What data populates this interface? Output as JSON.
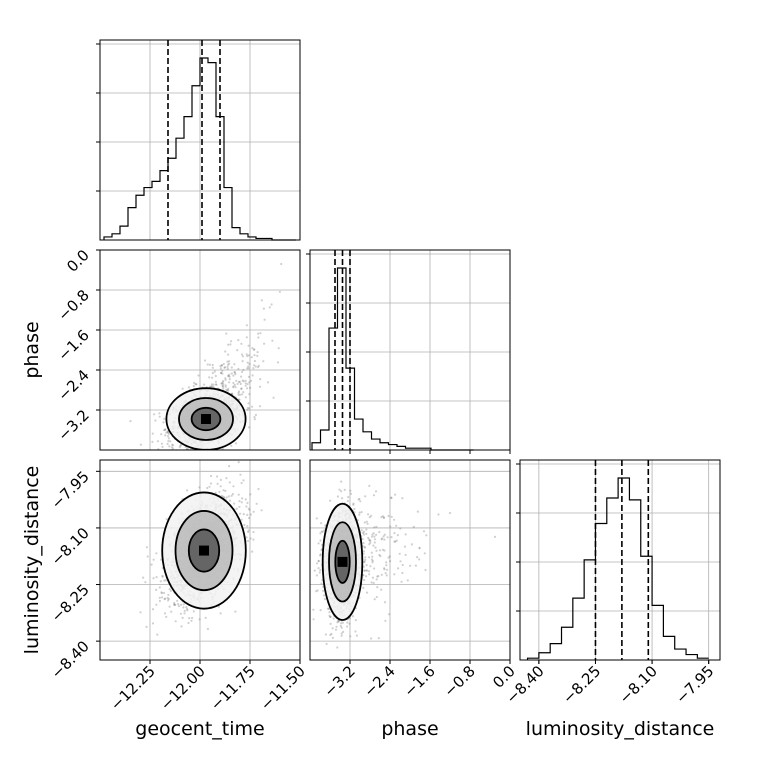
{
  "chart_data": {
    "type": "corner",
    "parameters": [
      "geocent_time",
      "phase",
      "luminosity_distance"
    ],
    "ranges": {
      "geocent_time": [
        -12.5,
        -11.5
      ],
      "phase": [
        -4.0,
        0.0
      ],
      "luminosity_distance": [
        -8.45,
        -7.92
      ]
    },
    "ticks": {
      "geocent_time": [
        "-12.25",
        "-12.00",
        "-11.75",
        "-11.50"
      ],
      "phase_y": [
        "0.0",
        "-0.8",
        "-1.6",
        "-2.4",
        "-3.2"
      ],
      "phase_x": [
        "-3.2",
        "-2.4",
        "-1.6",
        "-0.8",
        "0.0"
      ],
      "luminosity_distance_y": [
        "-7.95",
        "-8.10",
        "-8.25",
        "-8.40"
      ],
      "luminosity_distance_x": [
        "-8.40",
        "-8.25",
        "-8.10",
        "-7.95"
      ]
    },
    "tick_values": {
      "geocent_time": [
        -12.25,
        -12.0,
        -11.75,
        -11.5
      ],
      "phase": [
        0.0,
        -0.8,
        -1.6,
        -2.4,
        -3.2
      ],
      "luminosity_distance": [
        -7.95,
        -8.1,
        -8.25,
        -8.4
      ]
    },
    "quantiles": {
      "geocent_time": [
        -12.16,
        -11.99,
        -11.9
      ],
      "phase": [
        -3.5,
        -3.35,
        -3.2
      ],
      "luminosity_distance": [
        -8.25,
        -8.18,
        -8.11
      ]
    },
    "histograms": {
      "geocent_time": {
        "edges": [
          -12.48,
          -12.44,
          -12.4,
          -12.36,
          -12.32,
          -12.28,
          -12.24,
          -12.2,
          -12.16,
          -12.12,
          -12.08,
          -12.04,
          -12.0,
          -11.96,
          -11.92,
          -11.88,
          -11.84,
          -11.8,
          -11.76,
          -11.72,
          -11.68,
          -11.64,
          -11.6,
          -11.56,
          -11.52
        ],
        "counts": [
          2,
          4,
          9,
          21,
          29,
          34,
          38,
          45,
          53,
          66,
          80,
          100,
          118,
          115,
          80,
          34,
          8,
          4,
          2,
          1,
          1,
          0,
          0,
          0
        ]
      },
      "phase": {
        "edges": [
          -3.96,
          -3.79,
          -3.62,
          -3.45,
          -3.28,
          -3.11,
          -2.94,
          -2.77,
          -2.6,
          -2.43,
          -2.26,
          -2.09,
          -1.92,
          -1.75,
          -1.58,
          -1.41,
          -1.24,
          -1.07,
          -0.9,
          -0.73
        ],
        "counts": [
          4,
          11,
          67,
          100,
          45,
          17,
          10,
          6,
          4,
          3,
          2,
          1,
          1,
          1,
          0,
          0,
          0,
          0,
          0
        ]
      },
      "luminosity_distance": {
        "edges": [
          -8.43,
          -8.4,
          -8.37,
          -8.34,
          -8.31,
          -8.28,
          -8.25,
          -8.22,
          -8.19,
          -8.16,
          -8.13,
          -8.1,
          -8.07,
          -8.04,
          -8.01,
          -7.98,
          -7.95
        ],
        "counts": [
          1,
          4,
          9,
          18,
          34,
          55,
          75,
          89,
          100,
          88,
          57,
          30,
          13,
          6,
          3,
          1
        ]
      }
    },
    "density_centers": {
      "geocent_time|phase": [
        -11.97,
        -3.38
      ],
      "geocent_time|luminosity_distance": [
        -11.98,
        -8.16
      ],
      "phase|luminosity_distance": [
        -3.35,
        -8.19
      ]
    }
  }
}
